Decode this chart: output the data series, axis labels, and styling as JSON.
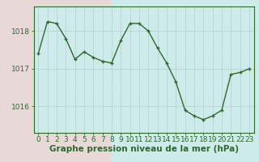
{
  "x": [
    0,
    1,
    2,
    3,
    4,
    5,
    6,
    7,
    8,
    9,
    10,
    11,
    12,
    13,
    14,
    15,
    16,
    17,
    18,
    19,
    20,
    21,
    22,
    23
  ],
  "y": [
    1017.4,
    1018.25,
    1018.2,
    1017.8,
    1017.25,
    1017.45,
    1017.3,
    1017.2,
    1017.15,
    1017.75,
    1018.2,
    1018.2,
    1018.0,
    1017.55,
    1017.15,
    1016.65,
    1015.9,
    1015.75,
    1015.65,
    1015.75,
    1015.9,
    1016.85,
    1016.9,
    1017.0
  ],
  "line_color": "#2d6a2d",
  "marker_color": "#2d6a2d",
  "bg_color": "#ceeaea",
  "grid_major_color": "#b8d8d8",
  "grid_minor_color": "#d4ecec",
  "border_color": "#2d6a2d",
  "xlabel": "Graphe pression niveau de la mer (hPa)",
  "xlabel_fontsize": 7.5,
  "yticks": [
    1016,
    1017,
    1018
  ],
  "ylim": [
    1015.3,
    1018.65
  ],
  "xlim": [
    -0.5,
    23.5
  ],
  "tick_fontsize": 6.5,
  "left_bg_color": "#e8d8d8"
}
